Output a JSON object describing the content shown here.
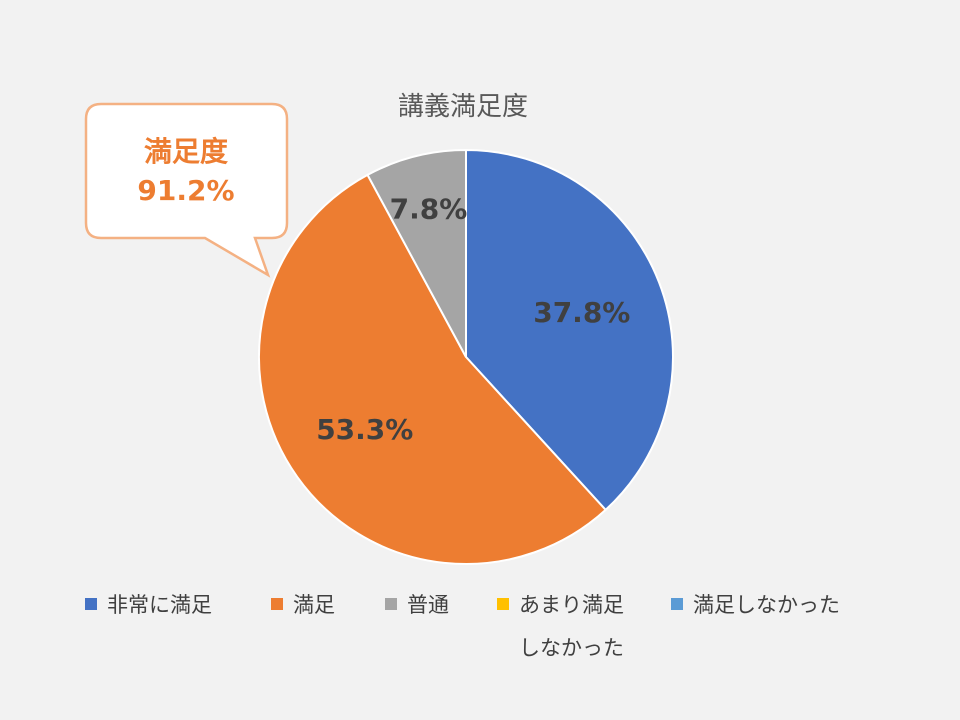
{
  "chart_data": {
    "type": "pie",
    "title": "講義満足度",
    "categories": [
      "非常に満足",
      "満足",
      "普通",
      "あまり満足しなかった",
      "満足しなかった"
    ],
    "values": [
      37.8,
      53.3,
      7.8,
      0,
      0
    ],
    "data_labels": [
      "37.8%",
      "53.3%",
      "7.8%",
      "",
      ""
    ],
    "colors": [
      "#4472c4",
      "#ed7d31",
      "#a5a5a5",
      "#ffc000",
      "#5b9bd5"
    ],
    "legend": {
      "placement": "bottom",
      "items": [
        {
          "label": "非常に満足",
          "color": "#4472c4"
        },
        {
          "label": "満足",
          "color": "#ed7d31"
        },
        {
          "label": "普通",
          "color": "#a5a5a5"
        },
        {
          "label_line1": "あまり満足",
          "label_line2": "しなかった",
          "color": "#ffc000"
        },
        {
          "label": "満足しなかった",
          "color": "#5b9bd5"
        }
      ]
    },
    "annotation": {
      "line1": "満足度",
      "line2": "91.2%",
      "border_color": "#f4b183"
    }
  }
}
